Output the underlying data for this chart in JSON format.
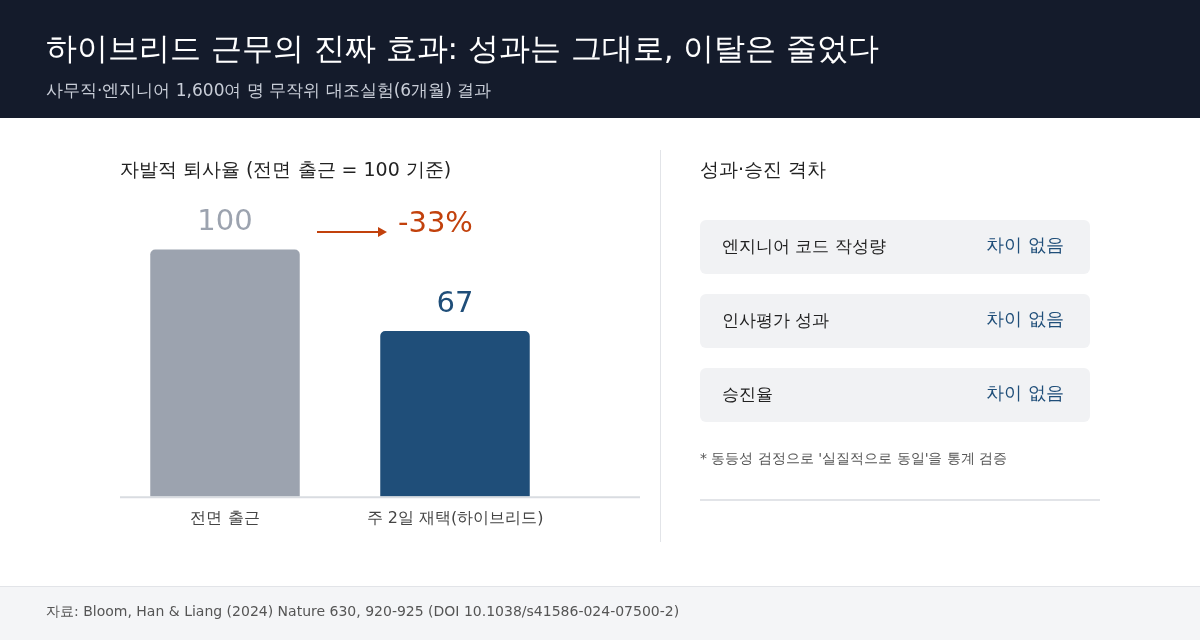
{
  "chart_data": [
    {
      "type": "bar",
      "title": "하이브리드 근무의 진짜 효과: 성과는 그대로, 이탈은 줄었다",
      "subtitle": "사무직·엔지니어 1,600여 명 무작위 대조실험(6개월) 결과",
      "categories": [
        "전면 출근",
        "주 2일 재택(하이브리드)"
      ],
      "values": [
        100,
        67
      ],
      "colors": [
        "#9ca3af",
        "#1f4e79"
      ],
      "data_labels": true,
      "grid": false,
      "legend": false,
      "annotations": [
        "자발적 퇴사율 (전면 출근 = 100 기준)",
        "-33%",
        "자료: Bloom, Han & Liang (2024) Nature 630, 920-925 (DOI 10.1038/s41586-024-07500-2)"
      ]
    },
    {
      "type": "other",
      "title": "성과·승진 격차",
      "categories": [
        "엔지니어 코드 작성량",
        "인사평가 성과",
        "승진율"
      ],
      "value_labels": [
        "차이 없음",
        "차이 없음",
        "차이 없음"
      ],
      "annotations": [
        "* 동등성 검정으로 '실질적으로 동일'을 통계 검증"
      ]
    }
  ]
}
